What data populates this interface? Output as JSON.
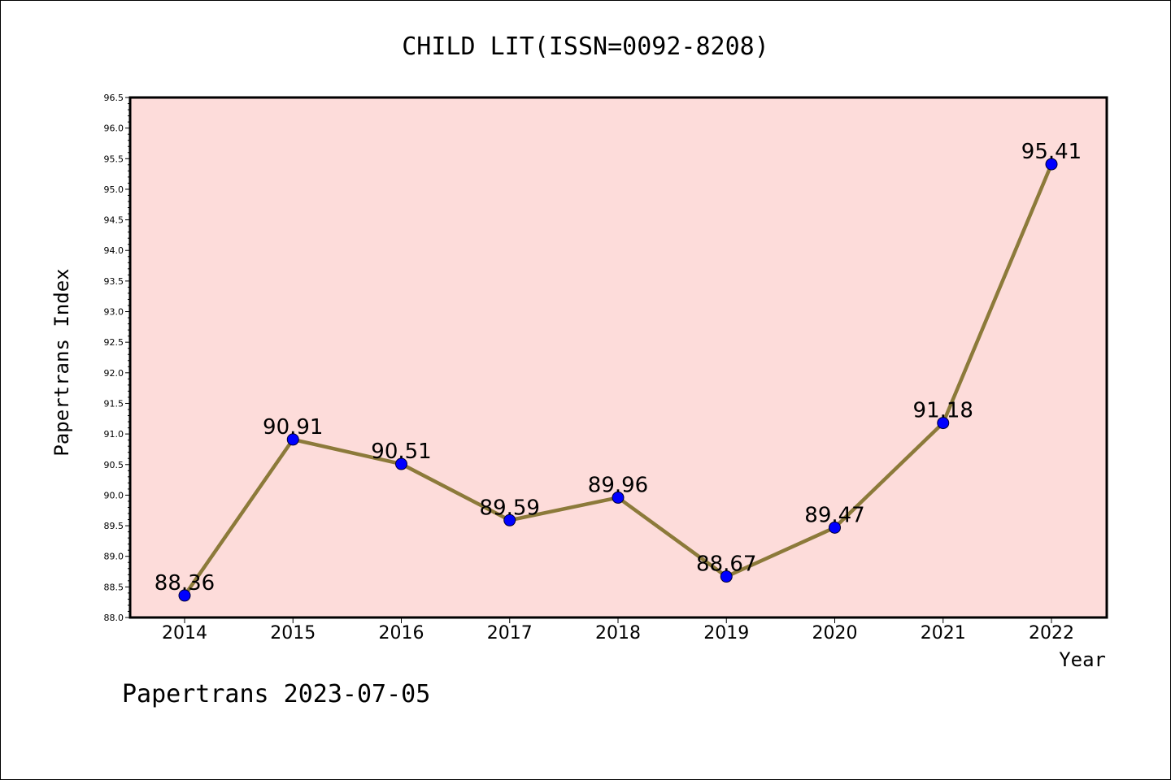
{
  "chart_data": {
    "type": "line",
    "title": "CHILD LIT(ISSN=0092-8208)",
    "xlabel": "Year",
    "ylabel": "Papertrans Index",
    "categories": [
      "2014",
      "2015",
      "2016",
      "2017",
      "2018",
      "2019",
      "2020",
      "2021",
      "2022"
    ],
    "values": [
      88.36,
      90.91,
      90.51,
      89.59,
      89.96,
      88.67,
      89.47,
      91.18,
      95.41
    ],
    "data_labels": [
      "88.36",
      "90.91",
      "90.51",
      "89.59",
      "89.96",
      "88.67",
      "89.47",
      "91.18",
      "95.41"
    ],
    "y_ticks": [
      "88.0",
      "88.5",
      "89.0",
      "89.5",
      "90.0",
      "90.5",
      "91.0",
      "91.5",
      "92.0",
      "92.5",
      "93.0",
      "93.5",
      "94.0",
      "94.5",
      "95.0",
      "95.5",
      "96.0",
      "96.5"
    ],
    "ylim": [
      88.0,
      96.5
    ],
    "grid": false,
    "legend": "none",
    "colors": {
      "plot_background": "#fddcda",
      "line": "#8c7a3a",
      "marker": "#0000ff"
    }
  },
  "footer": {
    "watermark": "Papertrans 2023-07-05"
  }
}
